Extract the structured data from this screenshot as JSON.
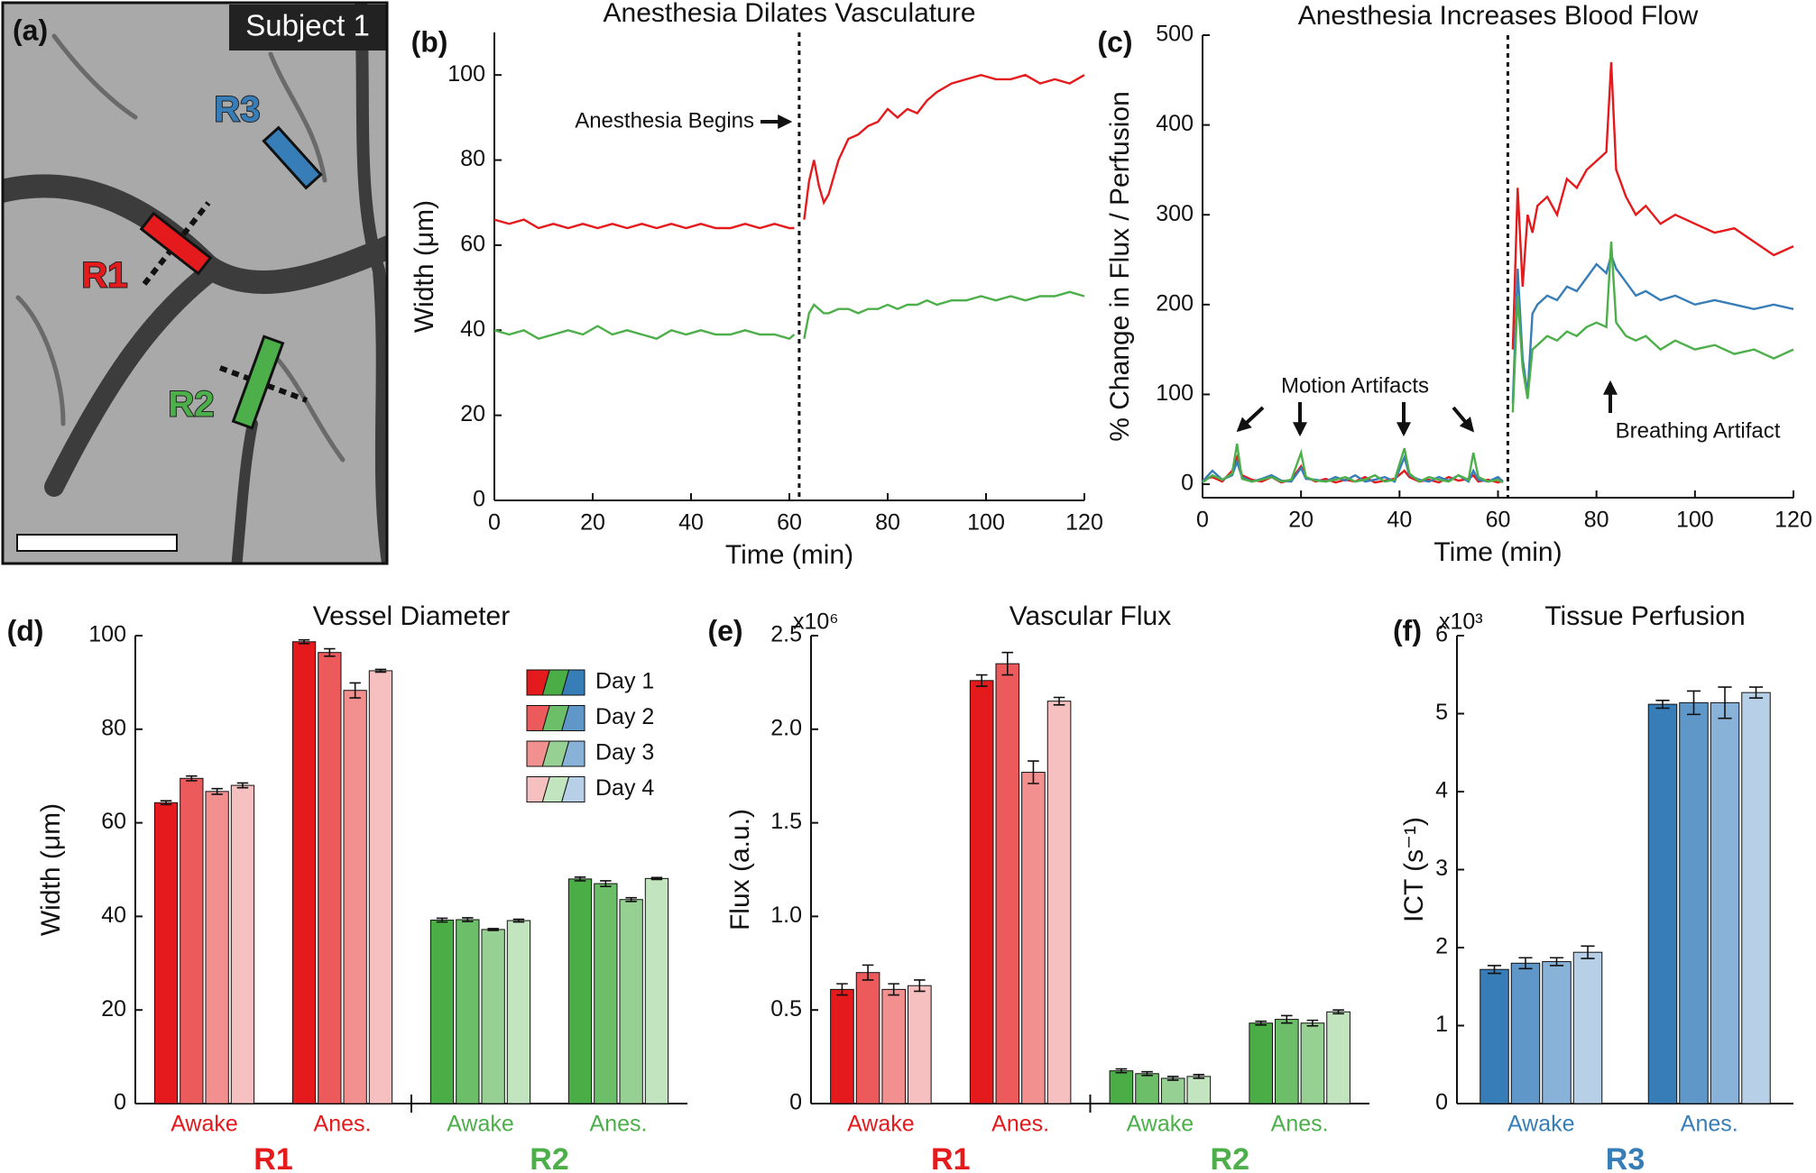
{
  "image_panel": {
    "label": "(a)",
    "subject": "Subject 1",
    "regions": [
      {
        "name": "R1",
        "color": "#e41a1c"
      },
      {
        "name": "R2",
        "color": "#4daf4a"
      },
      {
        "name": "R3",
        "color": "#377eb8"
      }
    ]
  },
  "chart_data": [
    {
      "type": "line",
      "panel": "(b)",
      "title": "Anesthesia Dilates Vasculature",
      "xlabel": "Time (min)",
      "ylabel": "Width (μm)",
      "annotations": [
        "Anesthesia Begins"
      ],
      "vline": 62,
      "xlim": [
        0,
        120
      ],
      "xticks": [
        0,
        20,
        40,
        60,
        80,
        100,
        120
      ],
      "ylim": [
        0,
        110
      ],
      "yticks": [
        0,
        20,
        40,
        60,
        80,
        100
      ],
      "x": [
        0,
        3,
        6,
        9,
        12,
        15,
        18,
        21,
        24,
        27,
        30,
        33,
        36,
        39,
        42,
        45,
        48,
        51,
        54,
        57,
        60,
        61,
        62,
        63,
        64,
        65,
        66,
        67,
        68,
        70,
        72,
        74,
        76,
        78,
        80,
        82,
        84,
        86,
        88,
        90,
        93,
        96,
        99,
        102,
        105,
        108,
        111,
        114,
        117,
        120
      ],
      "series": [
        {
          "color": "#e41a1c",
          "values": [
            66,
            65,
            66,
            64,
            65,
            64,
            65,
            64,
            65,
            64,
            65,
            64,
            65,
            64,
            65,
            64,
            64,
            65,
            64,
            65,
            64,
            64,
            null,
            66,
            75,
            80,
            74,
            70,
            72,
            80,
            85,
            86,
            88,
            89,
            92,
            90,
            92,
            91,
            94,
            96,
            98,
            99,
            100,
            99,
            99,
            100,
            98,
            99,
            98,
            100
          ]
        },
        {
          "color": "#4daf4a",
          "values": [
            40,
            39,
            40,
            38,
            39,
            40,
            39,
            41,
            39,
            40,
            39,
            38,
            40,
            39,
            40,
            39,
            39,
            40,
            39,
            39,
            38,
            39,
            null,
            38,
            44,
            46,
            45,
            44,
            44,
            45,
            45,
            44,
            45,
            45,
            46,
            45,
            46,
            46,
            47,
            46,
            47,
            47,
            48,
            47,
            48,
            47,
            48,
            48,
            49,
            48
          ]
        }
      ]
    },
    {
      "type": "line",
      "panel": "(c)",
      "title": "Anesthesia Increases Blood Flow",
      "xlabel": "Time (min)",
      "ylabel": "% Change in Flux / Perfusion",
      "annotations": [
        "Motion Artifacts",
        "Breathing Artifact"
      ],
      "vline": 62,
      "xlim": [
        0,
        120
      ],
      "xticks": [
        0,
        20,
        40,
        60,
        80,
        100,
        120
      ],
      "ylim": [
        -15,
        500
      ],
      "yticks": [
        0,
        100,
        200,
        300,
        400,
        500
      ],
      "x": [
        0,
        2,
        4,
        6,
        7,
        8,
        10,
        12,
        14,
        16,
        18,
        20,
        21,
        23,
        25,
        27,
        29,
        31,
        33,
        35,
        37,
        39,
        41,
        42,
        44,
        46,
        48,
        50,
        52,
        54,
        55,
        56,
        58,
        60,
        61,
        62,
        63,
        64,
        65,
        66,
        67,
        68,
        70,
        72,
        74,
        76,
        78,
        80,
        82,
        83,
        84,
        86,
        88,
        90,
        93,
        96,
        100,
        104,
        108,
        112,
        116,
        120
      ],
      "series": [
        {
          "color": "#e41a1c",
          "values": [
            5,
            8,
            3,
            15,
            30,
            10,
            5,
            3,
            8,
            2,
            5,
            20,
            8,
            3,
            6,
            2,
            5,
            3,
            8,
            2,
            4,
            6,
            15,
            8,
            3,
            5,
            2,
            8,
            4,
            6,
            10,
            3,
            5,
            2,
            4,
            null,
            150,
            330,
            220,
            300,
            280,
            310,
            320,
            300,
            340,
            330,
            350,
            360,
            370,
            470,
            350,
            320,
            300,
            310,
            290,
            300,
            290,
            280,
            285,
            270,
            255,
            265
          ]
        },
        {
          "color": "#377eb8",
          "values": [
            3,
            15,
            5,
            10,
            25,
            8,
            3,
            6,
            10,
            4,
            3,
            18,
            6,
            5,
            3,
            8,
            4,
            10,
            3,
            5,
            8,
            3,
            30,
            10,
            5,
            3,
            8,
            4,
            10,
            3,
            15,
            5,
            3,
            8,
            3,
            null,
            90,
            240,
            140,
            100,
            190,
            200,
            210,
            205,
            220,
            215,
            230,
            245,
            235,
            255,
            240,
            225,
            210,
            215,
            205,
            210,
            200,
            205,
            200,
            195,
            200,
            195
          ]
        },
        {
          "color": "#4daf4a",
          "values": [
            2,
            10,
            5,
            12,
            45,
            6,
            3,
            5,
            8,
            3,
            5,
            35,
            8,
            4,
            3,
            5,
            8,
            3,
            5,
            10,
            3,
            5,
            40,
            12,
            3,
            8,
            5,
            3,
            10,
            5,
            35,
            8,
            3,
            5,
            2,
            null,
            80,
            210,
            130,
            95,
            150,
            155,
            165,
            160,
            170,
            165,
            175,
            180,
            175,
            270,
            180,
            165,
            160,
            165,
            150,
            160,
            150,
            155,
            145,
            150,
            140,
            150
          ]
        }
      ]
    },
    {
      "type": "grouped_bar",
      "panel": "(d)",
      "title": "Vessel Diameter",
      "ylabel": "Width (μm)",
      "legend": "upper right",
      "ylim": [
        0,
        100
      ],
      "yticks": [
        0,
        20,
        40,
        60,
        80,
        100
      ],
      "regions": [
        {
          "name": "R1",
          "color": "#e41a1c",
          "categories": [
            "Awake",
            "Anes."
          ]
        },
        {
          "name": "R2",
          "color": "#4daf4a",
          "categories": [
            "Awake",
            "Anes."
          ]
        }
      ],
      "series": [
        {
          "name": "Day 1",
          "colors": [
            "#e41a1c",
            "#4aad45",
            "#377eb8"
          ],
          "values": [
            64.3,
            98.7,
            39.2,
            48.0
          ],
          "errors": [
            0.4,
            0.4,
            0.4,
            0.4
          ]
        },
        {
          "name": "Day 2",
          "colors": [
            "#ec5a5c",
            "#6dbe68",
            "#5e97c8"
          ],
          "values": [
            69.5,
            96.4,
            39.3,
            47.0
          ],
          "errors": [
            0.5,
            0.8,
            0.4,
            0.6
          ]
        },
        {
          "name": "Day 3",
          "colors": [
            "#f28f8f",
            "#97d093",
            "#88b2d7"
          ],
          "values": [
            66.7,
            88.3,
            37.2,
            43.6
          ],
          "errors": [
            0.6,
            1.6,
            0.2,
            0.4
          ]
        },
        {
          "name": "Day 4",
          "colors": [
            "#f7c0c0",
            "#c2e4be",
            "#b7d0e8"
          ],
          "values": [
            68.0,
            92.5,
            39.1,
            48.1
          ],
          "errors": [
            0.5,
            0.3,
            0.3,
            0.2
          ]
        }
      ]
    },
    {
      "type": "grouped_bar",
      "panel": "(e)",
      "title": "Vascular Flux",
      "ylabel": "Flux (a.u.)",
      "y_multiplier": "x10⁶",
      "ylim": [
        0,
        2.5
      ],
      "yticks": [
        0,
        0.5,
        {
          "value": 1,
          "label": "1.0"
        },
        1.5,
        {
          "value": 2,
          "label": "2.0"
        },
        2.5
      ],
      "regions": [
        {
          "name": "R1",
          "color": "#e41a1c",
          "categories": [
            "Awake",
            "Anes."
          ]
        },
        {
          "name": "R2",
          "color": "#4daf4a",
          "categories": [
            "Awake",
            "Anes."
          ]
        }
      ],
      "series": [
        {
          "colors": [
            "#e41a1c",
            "#4aad45"
          ],
          "values": [
            0.61,
            2.26,
            0.175,
            0.43
          ],
          "errors": [
            0.03,
            0.03,
            0.01,
            0.01
          ]
        },
        {
          "colors": [
            "#ec5a5c",
            "#6dbe68"
          ],
          "values": [
            0.7,
            2.35,
            0.16,
            0.45
          ],
          "errors": [
            0.04,
            0.06,
            0.01,
            0.02
          ]
        },
        {
          "colors": [
            "#f28f8f",
            "#97d093"
          ],
          "values": [
            0.61,
            1.77,
            0.135,
            0.43
          ],
          "errors": [
            0.03,
            0.06,
            0.01,
            0.015
          ]
        },
        {
          "colors": [
            "#f7c0c0",
            "#c2e4be"
          ],
          "values": [
            0.63,
            2.15,
            0.145,
            0.49
          ],
          "errors": [
            0.03,
            0.02,
            0.01,
            0.01
          ]
        }
      ]
    },
    {
      "type": "grouped_bar",
      "panel": "(f)",
      "title": "Tissue Perfusion",
      "ylabel": "ICT (s⁻¹)",
      "y_multiplier": "x10³",
      "ylim": [
        0,
        6
      ],
      "yticks": [
        0,
        1,
        2,
        3,
        4,
        5,
        6
      ],
      "regions": [
        {
          "name": "R3",
          "color": "#377eb8",
          "categories": [
            "Awake",
            "Anes."
          ]
        }
      ],
      "series": [
        {
          "colors": [
            "#377eb8"
          ],
          "values": [
            1.72,
            5.12
          ],
          "errors": [
            0.05,
            0.05
          ]
        },
        {
          "colors": [
            "#5e97c8"
          ],
          "values": [
            1.8,
            5.14
          ],
          "errors": [
            0.07,
            0.15
          ]
        },
        {
          "colors": [
            "#88b2d7"
          ],
          "values": [
            1.82,
            5.14
          ],
          "errors": [
            0.05,
            0.2
          ]
        },
        {
          "colors": [
            "#b7d0e8"
          ],
          "values": [
            1.94,
            5.27
          ],
          "errors": [
            0.08,
            0.07
          ]
        }
      ]
    }
  ]
}
